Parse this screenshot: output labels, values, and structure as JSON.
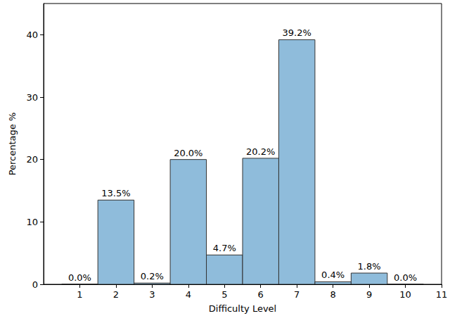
{
  "chart_data": {
    "type": "histogram",
    "x_label": "Difficulty Level",
    "y_label": "Percentage %",
    "bins": [
      0.5,
      1.5,
      2.5,
      3.5,
      4.5,
      5.5,
      6.5,
      7.5,
      8.5,
      9.5,
      10.5
    ],
    "values": [
      0.0,
      13.5,
      0.2,
      20.0,
      4.7,
      20.2,
      39.2,
      0.4,
      1.8,
      0.0
    ],
    "value_labels": [
      "0.0%",
      "13.5%",
      "0.2%",
      "20.0%",
      "4.7%",
      "20.2%",
      "39.2%",
      "0.4%",
      "1.8%",
      "0.0%"
    ],
    "data_labels": true,
    "color": "#8fbcdb",
    "xlim": [
      0,
      11
    ],
    "xticks": [
      1,
      2,
      3,
      4,
      5,
      6,
      7,
      8,
      9,
      10,
      11
    ],
    "ylim": [
      0,
      45
    ],
    "yticks": [
      0,
      10,
      20,
      30,
      40
    ],
    "grid": false
  }
}
